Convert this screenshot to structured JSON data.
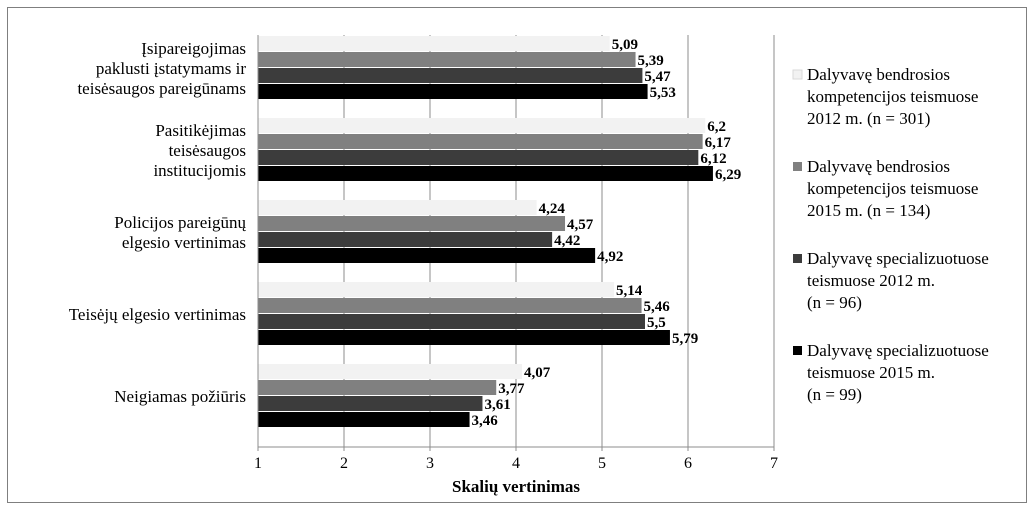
{
  "chart_data": {
    "type": "bar",
    "orientation": "horizontal",
    "categories": [
      [
        "Įsipareigojimas",
        "paklusti įstatymams ir",
        "teisėsaugos pareigūnams"
      ],
      [
        "Pasitikėjimas",
        "teisėsaugos",
        "institucijomis"
      ],
      [
        "Policijos pareigūnų",
        "elgesio vertinimas"
      ],
      [
        "Teisėjų elgesio vertinimas"
      ],
      [
        "Neigiamas požiūris"
      ]
    ],
    "series": [
      {
        "name": [
          "Dalyvavę bendrosios",
          "kompetencijos teismuose",
          "2012 m. (n = 301)"
        ],
        "color": "#f2f2f2",
        "values": [
          5.09,
          6.2,
          4.24,
          5.14,
          4.07
        ],
        "labels": [
          "5,09",
          "6,2",
          "4,24",
          "5,14",
          "4,07"
        ]
      },
      {
        "name": [
          "Dalyvavę bendrosios",
          "kompetencijos teismuose",
          "2015 m. (n = 134)"
        ],
        "color": "#808080",
        "values": [
          5.39,
          6.17,
          4.57,
          5.46,
          3.77
        ],
        "labels": [
          "5,39",
          "6,17",
          "4,57",
          "5,46",
          "3,77"
        ]
      },
      {
        "name": [
          "Dalyvavę specializuotuose",
          "teismuose 2012 m.",
          "(n = 96)"
        ],
        "color": "#3c3c3c",
        "values": [
          5.47,
          6.12,
          4.42,
          5.5,
          3.61
        ],
        "labels": [
          "5,47",
          "6,12",
          "4,42",
          "5,5",
          "3,61"
        ]
      },
      {
        "name": [
          "Dalyvavę specializuotuose",
          "teismuose 2015 m.",
          "(n = 99)"
        ],
        "color": "#000000",
        "values": [
          5.53,
          6.29,
          4.92,
          5.79,
          3.46
        ],
        "labels": [
          "5,53",
          "6,29",
          "4,92",
          "5,79",
          "3,46"
        ]
      }
    ],
    "xlabel": "Skalių vertinimas",
    "xticks": [
      "1",
      "2",
      "3",
      "4",
      "5",
      "6",
      "7"
    ],
    "xlim": [
      1,
      7
    ],
    "grid": true,
    "legend_position": "right"
  }
}
